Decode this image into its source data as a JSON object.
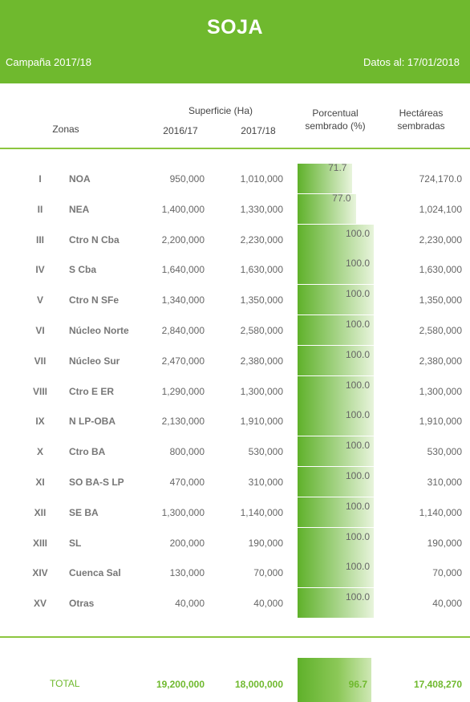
{
  "header": {
    "title": "SOJA",
    "campaign": "Campaña 2017/18",
    "date": "Datos al: 17/01/2018"
  },
  "columns": {
    "superficie": "Superficie (Ha)",
    "zonas": "Zonas",
    "y1": "2016/17",
    "y2": "2017/18",
    "pct_line1": "Porcentual",
    "pct_line2": "sembrado (%)",
    "ha_line1": "Hectáreas",
    "ha_line2": "sembradas"
  },
  "rows": [
    {
      "num": "I",
      "zone": "NOA",
      "v16": "950,000",
      "v17": "1,010,000",
      "pct": "71.7",
      "ha": "724,170.0",
      "pct_value": 71.7
    },
    {
      "num": "II",
      "zone": "NEA",
      "v16": "1,400,000",
      "v17": "1,330,000",
      "pct": "77.0",
      "ha": "1,024,100",
      "pct_value": 77.0
    },
    {
      "num": "III",
      "zone": "Ctro N Cba",
      "v16": "2,200,000",
      "v17": "2,230,000",
      "pct": "100.0",
      "ha": "2,230,000",
      "pct_value": 100
    },
    {
      "num": "IV",
      "zone": "S Cba",
      "v16": "1,640,000",
      "v17": "1,630,000",
      "pct": "100.0",
      "ha": "1,630,000",
      "pct_value": 100
    },
    {
      "num": "V",
      "zone": "Ctro N SFe",
      "v16": "1,340,000",
      "v17": "1,350,000",
      "pct": "100.0",
      "ha": "1,350,000",
      "pct_value": 100
    },
    {
      "num": "VI",
      "zone": "Núcleo Norte",
      "v16": "2,840,000",
      "v17": "2,580,000",
      "pct": "100.0",
      "ha": "2,580,000",
      "pct_value": 100
    },
    {
      "num": "VII",
      "zone": "Núcleo Sur",
      "v16": "2,470,000",
      "v17": "2,380,000",
      "pct": "100.0",
      "ha": "2,380,000",
      "pct_value": 100
    },
    {
      "num": "VIII",
      "zone": "Ctro E ER",
      "v16": "1,290,000",
      "v17": "1,300,000",
      "pct": "100.0",
      "ha": "1,300,000",
      "pct_value": 100
    },
    {
      "num": "IX",
      "zone": "N LP-OBA",
      "v16": "2,130,000",
      "v17": "1,910,000",
      "pct": "100.0",
      "ha": "1,910,000",
      "pct_value": 100
    },
    {
      "num": "X",
      "zone": "Ctro BA",
      "v16": "800,000",
      "v17": "530,000",
      "pct": "100.0",
      "ha": "530,000",
      "pct_value": 100
    },
    {
      "num": "XI",
      "zone": "SO BA-S LP",
      "v16": "470,000",
      "v17": "310,000",
      "pct": "100.0",
      "ha": "310,000",
      "pct_value": 100
    },
    {
      "num": "XII",
      "zone": "SE BA",
      "v16": "1,300,000",
      "v17": "1,140,000",
      "pct": "100.0",
      "ha": "1,140,000",
      "pct_value": 100
    },
    {
      "num": "XIII",
      "zone": "SL",
      "v16": "200,000",
      "v17": "190,000",
      "pct": "100.0",
      "ha": "190,000",
      "pct_value": 100
    },
    {
      "num": "XIV",
      "zone": "Cuenca Sal",
      "v16": "130,000",
      "v17": "70,000",
      "pct": "100.0",
      "ha": "70,000",
      "pct_value": 100
    },
    {
      "num": "XV",
      "zone": "Otras",
      "v16": "40,000",
      "v17": "40,000",
      "pct": "100.0",
      "ha": "40,000",
      "pct_value": 100
    }
  ],
  "total": {
    "label": "TOTAL",
    "v16": "19,200,000",
    "v17": "18,000,000",
    "pct": "96.7",
    "ha": "17,408,270",
    "pct_value": 96.7
  },
  "colors": {
    "brand": "#6fb92e",
    "rule": "#8cc63f"
  }
}
